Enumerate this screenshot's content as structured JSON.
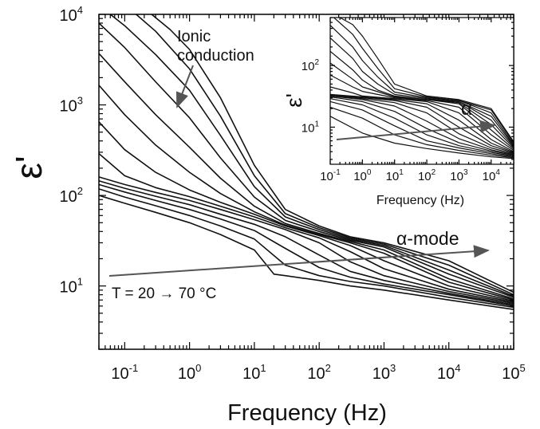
{
  "chart_data": [
    {
      "type": "line",
      "role": "main",
      "xlabel": "Frequency (Hz)",
      "ylabel": "ε'",
      "x_scale": "log",
      "y_scale": "log",
      "xlim": [
        0.04,
        100000
      ],
      "ylim": [
        2,
        10000
      ],
      "x_ticks": [
        {
          "base": "10",
          "exp": "-1",
          "value": 0.1
        },
        {
          "base": "10",
          "exp": "0",
          "value": 1
        },
        {
          "base": "10",
          "exp": "1",
          "value": 10
        },
        {
          "base": "10",
          "exp": "2",
          "value": 100
        },
        {
          "base": "10",
          "exp": "3",
          "value": 1000
        },
        {
          "base": "10",
          "exp": "4",
          "value": 10000
        },
        {
          "base": "10",
          "exp": "5",
          "value": 100000
        }
      ],
      "y_ticks": [
        {
          "base": "10",
          "exp": "1",
          "value": 10
        },
        {
          "base": "10",
          "exp": "2",
          "value": 100
        },
        {
          "base": "10",
          "exp": "3",
          "value": 1000
        },
        {
          "base": "10",
          "exp": "4",
          "value": 10000
        }
      ],
      "annotations": {
        "ionic": [
          "Ionic",
          "conduction"
        ],
        "alpha_mode": "α-mode",
        "temperature": "T = 20 → 70 °C"
      },
      "series": [
        {
          "x": [
            0.04,
            0.1,
            0.3,
            1,
            3,
            10,
            20,
            30,
            100,
            300,
            1000,
            10000,
            100000
          ],
          "y": [
            100,
            82,
            65,
            50,
            37,
            25,
            13.5,
            13,
            11.5,
            10,
            9,
            7,
            5.5
          ]
        },
        {
          "x": [
            0.04,
            0.1,
            0.3,
            1,
            3,
            10,
            30,
            100,
            300,
            1000,
            10000,
            100000
          ],
          "y": [
            118,
            96,
            77,
            60,
            46,
            33,
            17,
            13,
            11.2,
            10,
            7.5,
            5.8
          ]
        },
        {
          "x": [
            0.04,
            0.1,
            0.3,
            1,
            3,
            10,
            30,
            100,
            300,
            1000,
            10000,
            100000
          ],
          "y": [
            132,
            109,
            88,
            70,
            55,
            41,
            26,
            16,
            12.5,
            10.5,
            8,
            6
          ]
        },
        {
          "x": [
            0.04,
            0.1,
            0.3,
            1,
            3,
            10,
            30,
            100,
            300,
            1000,
            10000,
            100000
          ],
          "y": [
            145,
            120,
            98,
            79,
            62,
            48,
            35,
            22,
            14.5,
            11.5,
            8.3,
            6.2
          ]
        },
        {
          "x": [
            0.04,
            0.1,
            0.3,
            1,
            3,
            10,
            30,
            100,
            300,
            1000,
            10000,
            100000
          ],
          "y": [
            160,
            132,
            108,
            88,
            70,
            54,
            42,
            30,
            18.5,
            13,
            8.7,
            6.4
          ]
        },
        {
          "x": [
            0.04,
            0.1,
            0.3,
            1,
            3,
            10,
            30,
            100,
            300,
            1000,
            10000,
            100000
          ],
          "y": [
            290,
            165,
            122,
            97,
            76,
            58,
            44,
            34,
            24,
            15.5,
            9.2,
            6.6
          ]
        },
        {
          "x": [
            0.04,
            0.1,
            0.3,
            1,
            3,
            10,
            30,
            100,
            300,
            1000,
            10000,
            100000
          ],
          "y": [
            650,
            320,
            180,
            115,
            84,
            62,
            46,
            36,
            28,
            19,
            10,
            6.8
          ]
        },
        {
          "x": [
            0.04,
            0.1,
            0.3,
            1,
            3,
            10,
            30,
            100,
            300,
            1000,
            10000,
            100000
          ],
          "y": [
            1650,
            780,
            360,
            180,
            105,
            66,
            47,
            37,
            30,
            23,
            11,
            7
          ]
        },
        {
          "x": [
            0.04,
            0.1,
            0.3,
            1,
            3,
            10,
            30,
            100,
            300,
            1000,
            10000,
            100000
          ],
          "y": [
            3700,
            1800,
            780,
            340,
            155,
            76,
            49,
            38,
            31,
            25,
            12,
            7.2
          ]
        },
        {
          "x": [
            0.04,
            0.1,
            0.3,
            1,
            3,
            10,
            30,
            100,
            300,
            1000,
            10000,
            100000
          ],
          "y": [
            8000,
            4300,
            1800,
            720,
            260,
            96,
            53,
            40,
            32,
            27,
            13.5,
            7.5
          ]
        },
        {
          "x": [
            0.06,
            0.1,
            0.3,
            1,
            3,
            10,
            30,
            100,
            300,
            1000,
            10000,
            100000
          ],
          "y": [
            10000,
            7500,
            3600,
            1450,
            460,
            125,
            58,
            42,
            33,
            28,
            15,
            7.7
          ]
        },
        {
          "x": [
            0.15,
            0.3,
            1,
            3,
            10,
            30,
            100,
            300,
            1000,
            10000,
            100000
          ],
          "y": [
            10000,
            6500,
            2500,
            750,
            165,
            63,
            44,
            34,
            29,
            17,
            8
          ]
        },
        {
          "x": [
            0.26,
            0.5,
            1,
            3,
            10,
            30,
            100,
            300,
            1000,
            10000,
            100000
          ],
          "y": [
            10000,
            6800,
            4100,
            1200,
            215,
            70,
            46,
            35,
            30,
            19,
            8.5
          ]
        }
      ]
    },
    {
      "type": "line",
      "role": "inset",
      "xlabel": "Frequency (Hz)",
      "ylabel": "ε'",
      "x_scale": "log",
      "y_scale": "log",
      "xlim": [
        0.1,
        50000
      ],
      "ylim": [
        2.5,
        600
      ],
      "x_ticks": [
        {
          "base": "10",
          "exp": "-1",
          "value": 0.1
        },
        {
          "base": "10",
          "exp": "0",
          "value": 1
        },
        {
          "base": "10",
          "exp": "1",
          "value": 10
        },
        {
          "base": "10",
          "exp": "2",
          "value": 100
        },
        {
          "base": "10",
          "exp": "3",
          "value": 1000
        },
        {
          "base": "10",
          "exp": "4",
          "value": 10000
        }
      ],
      "y_ticks": [
        {
          "base": "10",
          "exp": "1",
          "value": 10
        },
        {
          "base": "10",
          "exp": "2",
          "value": 100
        }
      ],
      "annotations": {
        "alpha": "α"
      },
      "series": [
        {
          "x": [
            0.1,
            1,
            10,
            100,
            1000,
            10000,
            50000
          ],
          "y": [
            15,
            8,
            5.5,
            4.5,
            3.8,
            3.3,
            3.1
          ]
        },
        {
          "x": [
            0.1,
            1,
            10,
            100,
            1000,
            10000,
            50000
          ],
          "y": [
            21,
            14,
            7.5,
            5.2,
            4.2,
            3.5,
            3.2
          ]
        },
        {
          "x": [
            0.1,
            1,
            10,
            100,
            1000,
            10000,
            50000
          ],
          "y": [
            26,
            19,
            10.5,
            6,
            4.6,
            3.7,
            3.3
          ]
        },
        {
          "x": [
            0.1,
            1,
            10,
            100,
            1000,
            10000,
            50000
          ],
          "y": [
            29,
            23,
            14,
            7.5,
            5,
            3.9,
            3.4
          ]
        },
        {
          "x": [
            0.1,
            1,
            10,
            100,
            1000,
            10000,
            50000
          ],
          "y": [
            31,
            26,
            18,
            9.5,
            5.6,
            4.1,
            3.5
          ]
        },
        {
          "x": [
            0.1,
            1,
            10,
            100,
            1000,
            10000,
            50000
          ],
          "y": [
            32,
            28,
            22,
            12.5,
            6.5,
            4.3,
            3.6
          ]
        },
        {
          "x": [
            0.1,
            1,
            10,
            100,
            1000,
            10000,
            50000
          ],
          "y": [
            32,
            29,
            25,
            17,
            7.8,
            4.6,
            3.7
          ]
        },
        {
          "x": [
            0.1,
            1,
            10,
            100,
            1000,
            10000,
            50000
          ],
          "y": [
            33,
            30,
            27,
            21,
            10,
            5,
            3.8
          ]
        },
        {
          "x": [
            0.1,
            1,
            10,
            100,
            1000,
            10000,
            50000
          ],
          "y": [
            33,
            31,
            28,
            24,
            13,
            5.5,
            3.9
          ]
        },
        {
          "x": [
            0.1,
            1,
            10,
            100,
            1000,
            10000,
            50000
          ],
          "y": [
            34,
            31,
            29,
            26,
            17,
            6.3,
            4
          ]
        },
        {
          "x": [
            0.1,
            0.5,
            1,
            10,
            100,
            1000,
            10000,
            50000
          ],
          "y": [
            45,
            36,
            32,
            29,
            27,
            21,
            7.5,
            4.2
          ]
        },
        {
          "x": [
            0.1,
            0.5,
            1,
            10,
            100,
            1000,
            10000,
            50000
          ],
          "y": [
            70,
            45,
            38,
            30,
            28,
            24,
            9,
            4.4
          ]
        },
        {
          "x": [
            0.1,
            0.5,
            1,
            10,
            100,
            1000,
            10000,
            50000
          ],
          "y": [
            110,
            60,
            45,
            31,
            28,
            25,
            11,
            4.6
          ]
        },
        {
          "x": [
            0.1,
            0.5,
            1,
            3,
            10,
            100,
            1000,
            10000,
            50000
          ],
          "y": [
            170,
            85,
            58,
            40,
            32,
            28,
            26,
            13,
            4.8
          ]
        },
        {
          "x": [
            0.1,
            0.5,
            1,
            3,
            10,
            100,
            1000,
            10000,
            50000
          ],
          "y": [
            280,
            130,
            80,
            50,
            34,
            29,
            26,
            15,
            5
          ]
        },
        {
          "x": [
            0.1,
            0.5,
            1,
            3,
            10,
            100,
            1000,
            10000,
            50000
          ],
          "y": [
            450,
            200,
            120,
            65,
            37,
            30,
            27,
            17,
            5.2
          ]
        },
        {
          "x": [
            0.13,
            0.5,
            1,
            3,
            10,
            100,
            1000,
            10000,
            50000
          ],
          "y": [
            600,
            320,
            190,
            90,
            42,
            31,
            27,
            19,
            5.5
          ]
        },
        {
          "x": [
            0.2,
            0.5,
            1,
            3,
            10,
            100,
            1000,
            10000,
            50000
          ],
          "y": [
            600,
            460,
            300,
            130,
            50,
            32,
            28,
            20,
            5.8
          ]
        }
      ]
    }
  ]
}
